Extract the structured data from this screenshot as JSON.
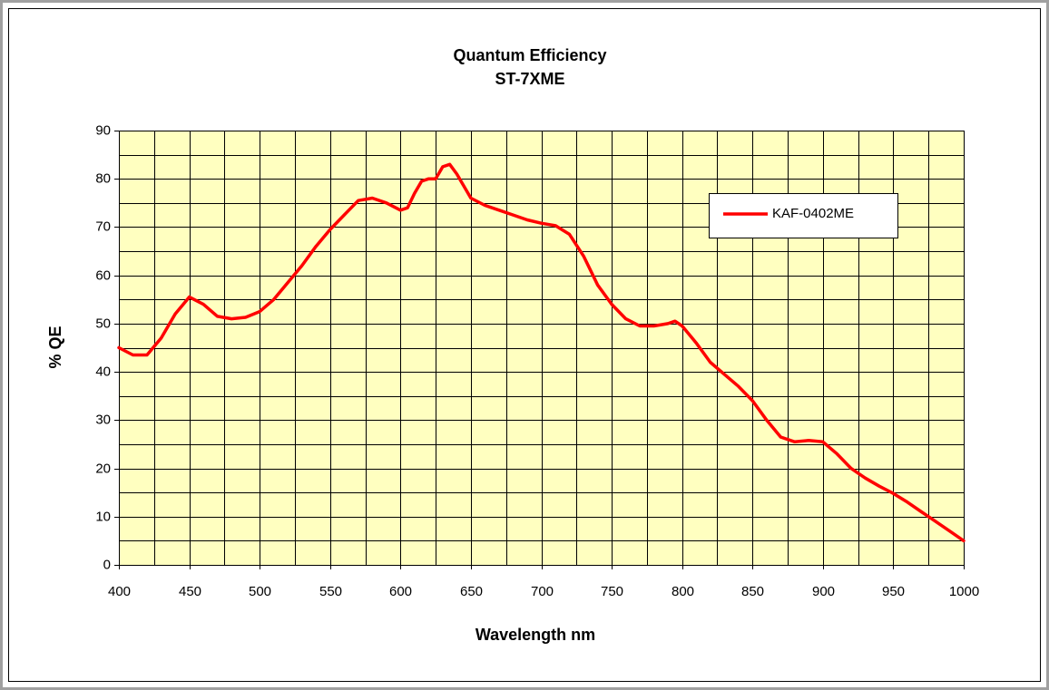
{
  "chart_data": {
    "type": "line",
    "title": "Quantum Efficiency",
    "subtitle": "ST-7XME",
    "x_label": "Wavelength nm",
    "y_label": "% QE",
    "x": [
      400,
      410,
      420,
      430,
      440,
      450,
      460,
      470,
      480,
      490,
      500,
      510,
      520,
      530,
      540,
      550,
      560,
      570,
      580,
      590,
      600,
      605,
      610,
      615,
      620,
      625,
      630,
      635,
      640,
      650,
      660,
      670,
      680,
      690,
      700,
      710,
      720,
      730,
      740,
      750,
      760,
      770,
      780,
      790,
      795,
      800,
      810,
      820,
      830,
      840,
      850,
      860,
      870,
      880,
      890,
      900,
      910,
      920,
      930,
      940,
      950,
      960,
      970,
      980,
      990,
      1000
    ],
    "series": [
      {
        "name": "KAF-0402ME",
        "color": "#ff0000",
        "values": [
          45,
          43.5,
          43.5,
          47,
          52,
          55.5,
          54,
          51.5,
          51,
          51.3,
          52.5,
          55,
          58.5,
          62,
          66,
          69.5,
          72.5,
          75.5,
          76,
          75,
          73.5,
          74,
          77,
          79.5,
          80,
          80,
          82.5,
          83,
          81,
          76,
          74.5,
          73.5,
          72.5,
          71.5,
          70.8,
          70.3,
          68.5,
          64,
          58,
          54,
          51,
          49.5,
          49.5,
          50,
          50.5,
          49.5,
          46,
          42,
          39.5,
          37,
          34,
          30,
          26.5,
          25.5,
          25.8,
          25.5,
          23,
          20,
          18,
          16.3,
          14.8,
          13,
          11,
          9,
          7,
          5
        ]
      }
    ],
    "xlim": [
      400,
      1000
    ],
    "xticks": [
      400,
      450,
      500,
      550,
      600,
      650,
      700,
      750,
      800,
      850,
      900,
      950,
      1000
    ],
    "ylim": [
      0,
      90
    ],
    "yticks": [
      0,
      10,
      20,
      30,
      40,
      50,
      60,
      70,
      80,
      90
    ],
    "grid": true,
    "minor_grid": true,
    "plot_background": "#ffffc0",
    "legend": "upper right"
  }
}
